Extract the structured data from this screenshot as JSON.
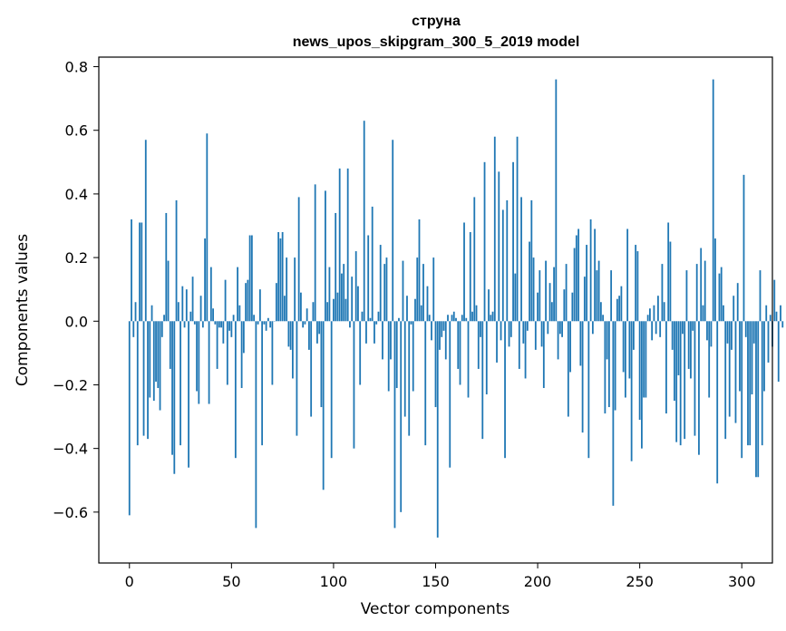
{
  "chart_data": {
    "type": "bar",
    "title": "струна",
    "subtitle": "news_upos_skipgram_300_5_2019 model",
    "xlabel": "Vector components",
    "ylabel": "Components values",
    "xlim": [
      -15,
      315
    ],
    "ylim": [
      -0.76,
      0.83
    ],
    "xticks": [
      0,
      50,
      100,
      150,
      200,
      250,
      300
    ],
    "xtick_labels": [
      "0",
      "50",
      "100",
      "150",
      "200",
      "250",
      "300"
    ],
    "yticks": [
      -0.6,
      -0.4,
      -0.2,
      0.0,
      0.2,
      0.4,
      0.6,
      0.8
    ],
    "ytick_labels": [
      "−0.6",
      "−0.4",
      "−0.2",
      "0.0",
      "0.2",
      "0.4",
      "0.6",
      "0.8"
    ],
    "bar_color": "#1f77b4",
    "grid": false,
    "legend": "none",
    "series": [
      {
        "values": [
          -0.61,
          0.32,
          -0.05,
          0.06,
          -0.39,
          0.31,
          0.31,
          -0.36,
          0.57,
          -0.37,
          -0.24,
          0.05,
          -0.25,
          -0.19,
          -0.21,
          -0.28,
          -0.05,
          0.02,
          0.34,
          0.19,
          -0.15,
          -0.42,
          -0.48,
          0.38,
          0.06,
          -0.39,
          0.11,
          -0.02,
          0.1,
          -0.46,
          0.03,
          0.14,
          -0.01,
          -0.22,
          -0.26,
          0.08,
          -0.02,
          0.26,
          0.59,
          -0.26,
          0.17,
          0.04,
          -0.01,
          -0.15,
          -0.02,
          -0.02,
          -0.07,
          0.13,
          -0.2,
          -0.03,
          -0.05,
          0.02,
          -0.43,
          0.17,
          0.05,
          -0.21,
          -0.1,
          0.12,
          0.13,
          0.27,
          0.27,
          0.02,
          -0.65,
          -0.01,
          0.1,
          -0.39,
          -0.01,
          -0.03,
          0.01,
          -0.02,
          -0.2,
          0.0,
          0.12,
          0.28,
          0.26,
          0.28,
          0.08,
          0.2,
          -0.08,
          -0.09,
          -0.18,
          0.2,
          -0.36,
          0.39,
          0.09,
          -0.02,
          -0.01,
          0.04,
          -0.09,
          -0.3,
          0.06,
          0.43,
          -0.07,
          -0.04,
          -0.27,
          -0.53,
          0.41,
          0.06,
          0.17,
          -0.43,
          0.07,
          0.34,
          0.09,
          0.48,
          0.15,
          0.18,
          0.07,
          0.48,
          -0.02,
          0.14,
          -0.4,
          0.22,
          0.11,
          -0.2,
          0.03,
          0.63,
          -0.07,
          0.27,
          0.01,
          0.36,
          -0.07,
          -0.01,
          0.03,
          0.24,
          -0.12,
          0.18,
          0.2,
          -0.22,
          -0.12,
          0.57,
          -0.65,
          -0.21,
          0.01,
          -0.6,
          0.19,
          -0.3,
          0.08,
          -0.36,
          -0.01,
          -0.22,
          0.07,
          0.2,
          0.32,
          0.05,
          0.18,
          -0.39,
          0.11,
          0.02,
          -0.06,
          0.2,
          -0.27,
          -0.68,
          -0.09,
          -0.05,
          -0.03,
          -0.12,
          0.02,
          -0.46,
          0.02,
          0.03,
          0.01,
          -0.15,
          -0.2,
          0.02,
          0.31,
          0.01,
          -0.24,
          0.28,
          0.03,
          0.39,
          0.05,
          -0.15,
          -0.05,
          -0.37,
          0.5,
          -0.23,
          0.1,
          0.02,
          0.03,
          0.58,
          -0.13,
          0.47,
          -0.06,
          0.35,
          -0.43,
          0.38,
          -0.08,
          -0.05,
          0.5,
          0.15,
          0.58,
          -0.15,
          0.39,
          -0.07,
          -0.18,
          -0.03,
          0.25,
          0.38,
          0.2,
          -0.09,
          0.09,
          0.16,
          -0.08,
          -0.21,
          0.19,
          -0.04,
          0.12,
          0.06,
          0.17,
          0.76,
          -0.12,
          -0.04,
          -0.05,
          0.1,
          0.18,
          -0.3,
          -0.16,
          0.09,
          0.23,
          0.27,
          0.29,
          -0.14,
          -0.35,
          0.14,
          0.24,
          -0.43,
          0.32,
          -0.04,
          0.29,
          0.16,
          0.19,
          0.06,
          0.02,
          -0.29,
          -0.12,
          -0.27,
          0.16,
          -0.58,
          -0.28,
          0.07,
          0.08,
          0.11,
          -0.16,
          -0.24,
          0.29,
          -0.18,
          -0.44,
          -0.09,
          0.24,
          0.22,
          -0.31,
          -0.4,
          -0.24,
          -0.24,
          0.02,
          0.04,
          -0.06,
          0.05,
          -0.04,
          0.08,
          -0.05,
          0.18,
          0.06,
          -0.29,
          0.31,
          0.25,
          -0.09,
          -0.25,
          -0.38,
          -0.17,
          -0.39,
          -0.04,
          -0.37,
          0.16,
          -0.15,
          -0.18,
          -0.03,
          -0.36,
          0.18,
          -0.42,
          0.23,
          0.05,
          0.19,
          -0.06,
          -0.24,
          -0.08,
          0.76,
          0.26,
          -0.51,
          0.15,
          0.17,
          0.05,
          -0.37,
          -0.07,
          -0.3,
          -0.09,
          0.08,
          -0.32,
          0.12,
          -0.22,
          -0.43,
          0.46,
          -0.05,
          -0.39,
          -0.39,
          -0.23,
          -0.07,
          -0.49,
          -0.49,
          0.16,
          -0.39,
          -0.22,
          0.05,
          -0.13,
          0.02,
          -0.08,
          0.13,
          0.03,
          -0.19,
          0.05,
          -0.02
        ]
      }
    ]
  }
}
